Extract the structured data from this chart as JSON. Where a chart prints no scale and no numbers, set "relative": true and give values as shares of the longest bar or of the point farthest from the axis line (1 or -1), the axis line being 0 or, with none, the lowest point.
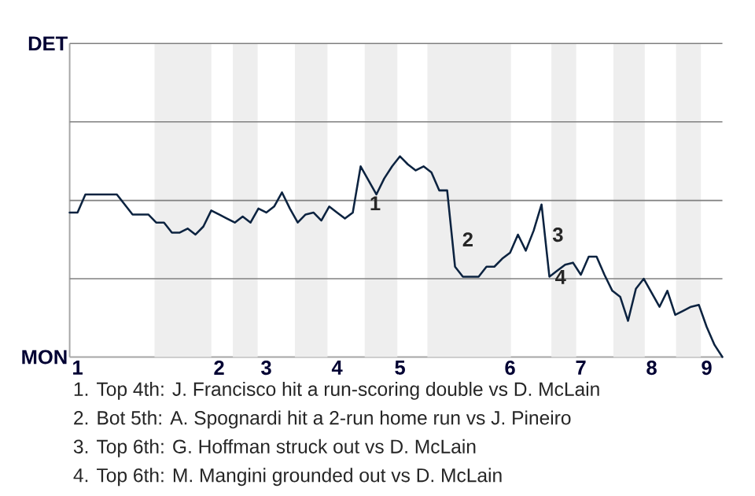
{
  "chart_data": {
    "type": "line",
    "categories": [
      null,
      "1",
      null,
      null,
      null,
      null,
      null,
      null,
      null,
      null,
      null,
      null,
      null,
      null,
      null,
      null,
      null,
      null,
      null,
      "2",
      null,
      null,
      null,
      null,
      null,
      "3",
      null,
      null,
      null,
      null,
      null,
      null,
      null,
      null,
      "4",
      null,
      null,
      null,
      null,
      null,
      null,
      null,
      "5",
      null,
      null,
      null,
      null,
      null,
      null,
      null,
      null,
      null,
      null,
      null,
      null,
      null,
      "6",
      null,
      null,
      null,
      null,
      null,
      null,
      null,
      null,
      "7",
      null,
      null,
      null,
      null,
      null,
      null,
      null,
      null,
      "8",
      null,
      null,
      null,
      null,
      null,
      null,
      "9",
      null,
      null
    ],
    "relative": true,
    "series": [
      {
        "color": "#0c2340",
        "values": [
          0.72,
          0.72,
          0.81,
          0.81,
          0.81,
          0.81,
          0.81,
          0.76,
          0.71,
          0.71,
          0.71,
          0.67,
          0.67,
          0.62,
          0.62,
          0.64,
          0.61,
          0.65,
          0.73,
          0.71,
          0.69,
          0.67,
          0.7,
          0.67,
          0.74,
          0.72,
          0.75,
          0.82,
          0.74,
          0.67,
          0.71,
          0.72,
          0.68,
          0.75,
          0.72,
          0.69,
          0.72,
          0.95,
          0.88,
          0.81,
          0.89,
          0.95,
          1,
          0.96,
          0.93,
          0.95,
          0.92,
          0.83,
          0.83,
          0.45,
          0.4,
          0.4,
          0.4,
          0.45,
          0.45,
          0.49,
          0.52,
          0.61,
          0.53,
          0.63,
          0.76,
          0.4,
          0.43,
          0.46,
          0.47,
          0.41,
          0.5,
          0.5,
          0.41,
          0.33,
          0.3,
          0.18,
          0.34,
          0.39,
          0.32,
          0.25,
          0.33,
          0.21,
          0.23,
          0.25,
          0.26,
          0.15,
          0.06,
          0
        ]
      }
    ],
    "marker": "none",
    "ref_lines": [
      {
        "axis": "y",
        "value": 0.39,
        "color": "#808080"
      },
      {
        "axis": "y",
        "value": 0.78,
        "color": "#808080"
      }
    ],
    "annotations": [
      "DET",
      "MON",
      "1",
      "2",
      "3",
      "4",
      "1. Top 4th: J. Francisco hit a run-scoring double vs D. McLain",
      "2. Bot 5th: A. Spognardi hit a 2-run home run vs J. Pineiro",
      "3. Top 6th: G. Hoffman struck out vs D. McLain",
      "4. Top 6th: M. Mangini grounded out vs D. McLain"
    ]
  }
}
